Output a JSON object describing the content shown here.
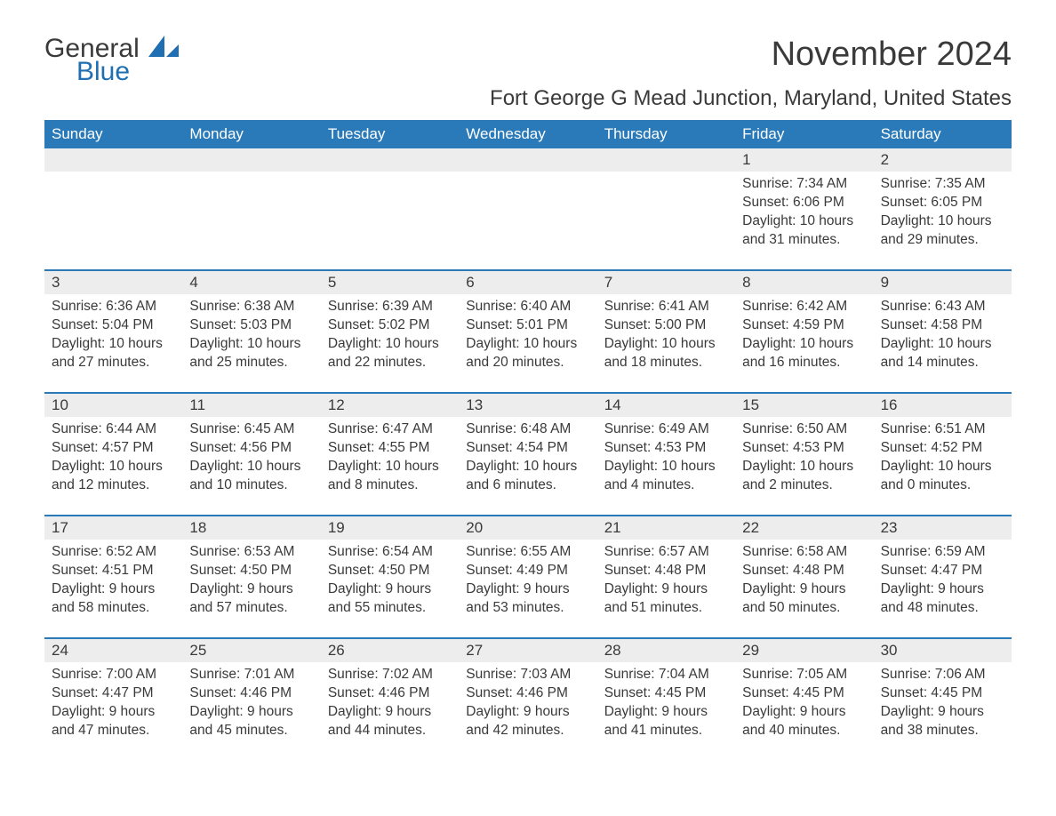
{
  "logo": {
    "text1": "General",
    "text2": "Blue"
  },
  "title": "November 2024",
  "location": "Fort George G Mead Junction, Maryland, United States",
  "colors": {
    "header_bg": "#2a7ab9",
    "header_text": "#ffffff",
    "daynum_bg": "#ededed",
    "border": "#2a7ab9",
    "body_text": "#3a3a3a",
    "logo_blue": "#1f6fb2",
    "page_bg": "#ffffff"
  },
  "font": {
    "family": "Arial",
    "title_size": 38,
    "location_size": 24,
    "weekday_size": 17,
    "body_size": 15.5
  },
  "weekdays": [
    "Sunday",
    "Monday",
    "Tuesday",
    "Wednesday",
    "Thursday",
    "Friday",
    "Saturday"
  ],
  "weeks": [
    {
      "days": [
        {
          "num": "",
          "sunrise": "",
          "sunset": "",
          "daylight": ""
        },
        {
          "num": "",
          "sunrise": "",
          "sunset": "",
          "daylight": ""
        },
        {
          "num": "",
          "sunrise": "",
          "sunset": "",
          "daylight": ""
        },
        {
          "num": "",
          "sunrise": "",
          "sunset": "",
          "daylight": ""
        },
        {
          "num": "",
          "sunrise": "",
          "sunset": "",
          "daylight": ""
        },
        {
          "num": "1",
          "sunrise": "Sunrise: 7:34 AM",
          "sunset": "Sunset: 6:06 PM",
          "daylight": "Daylight: 10 hours and 31 minutes."
        },
        {
          "num": "2",
          "sunrise": "Sunrise: 7:35 AM",
          "sunset": "Sunset: 6:05 PM",
          "daylight": "Daylight: 10 hours and 29 minutes."
        }
      ]
    },
    {
      "days": [
        {
          "num": "3",
          "sunrise": "Sunrise: 6:36 AM",
          "sunset": "Sunset: 5:04 PM",
          "daylight": "Daylight: 10 hours and 27 minutes."
        },
        {
          "num": "4",
          "sunrise": "Sunrise: 6:38 AM",
          "sunset": "Sunset: 5:03 PM",
          "daylight": "Daylight: 10 hours and 25 minutes."
        },
        {
          "num": "5",
          "sunrise": "Sunrise: 6:39 AM",
          "sunset": "Sunset: 5:02 PM",
          "daylight": "Daylight: 10 hours and 22 minutes."
        },
        {
          "num": "6",
          "sunrise": "Sunrise: 6:40 AM",
          "sunset": "Sunset: 5:01 PM",
          "daylight": "Daylight: 10 hours and 20 minutes."
        },
        {
          "num": "7",
          "sunrise": "Sunrise: 6:41 AM",
          "sunset": "Sunset: 5:00 PM",
          "daylight": "Daylight: 10 hours and 18 minutes."
        },
        {
          "num": "8",
          "sunrise": "Sunrise: 6:42 AM",
          "sunset": "Sunset: 4:59 PM",
          "daylight": "Daylight: 10 hours and 16 minutes."
        },
        {
          "num": "9",
          "sunrise": "Sunrise: 6:43 AM",
          "sunset": "Sunset: 4:58 PM",
          "daylight": "Daylight: 10 hours and 14 minutes."
        }
      ]
    },
    {
      "days": [
        {
          "num": "10",
          "sunrise": "Sunrise: 6:44 AM",
          "sunset": "Sunset: 4:57 PM",
          "daylight": "Daylight: 10 hours and 12 minutes."
        },
        {
          "num": "11",
          "sunrise": "Sunrise: 6:45 AM",
          "sunset": "Sunset: 4:56 PM",
          "daylight": "Daylight: 10 hours and 10 minutes."
        },
        {
          "num": "12",
          "sunrise": "Sunrise: 6:47 AM",
          "sunset": "Sunset: 4:55 PM",
          "daylight": "Daylight: 10 hours and 8 minutes."
        },
        {
          "num": "13",
          "sunrise": "Sunrise: 6:48 AM",
          "sunset": "Sunset: 4:54 PM",
          "daylight": "Daylight: 10 hours and 6 minutes."
        },
        {
          "num": "14",
          "sunrise": "Sunrise: 6:49 AM",
          "sunset": "Sunset: 4:53 PM",
          "daylight": "Daylight: 10 hours and 4 minutes."
        },
        {
          "num": "15",
          "sunrise": "Sunrise: 6:50 AM",
          "sunset": "Sunset: 4:53 PM",
          "daylight": "Daylight: 10 hours and 2 minutes."
        },
        {
          "num": "16",
          "sunrise": "Sunrise: 6:51 AM",
          "sunset": "Sunset: 4:52 PM",
          "daylight": "Daylight: 10 hours and 0 minutes."
        }
      ]
    },
    {
      "days": [
        {
          "num": "17",
          "sunrise": "Sunrise: 6:52 AM",
          "sunset": "Sunset: 4:51 PM",
          "daylight": "Daylight: 9 hours and 58 minutes."
        },
        {
          "num": "18",
          "sunrise": "Sunrise: 6:53 AM",
          "sunset": "Sunset: 4:50 PM",
          "daylight": "Daylight: 9 hours and 57 minutes."
        },
        {
          "num": "19",
          "sunrise": "Sunrise: 6:54 AM",
          "sunset": "Sunset: 4:50 PM",
          "daylight": "Daylight: 9 hours and 55 minutes."
        },
        {
          "num": "20",
          "sunrise": "Sunrise: 6:55 AM",
          "sunset": "Sunset: 4:49 PM",
          "daylight": "Daylight: 9 hours and 53 minutes."
        },
        {
          "num": "21",
          "sunrise": "Sunrise: 6:57 AM",
          "sunset": "Sunset: 4:48 PM",
          "daylight": "Daylight: 9 hours and 51 minutes."
        },
        {
          "num": "22",
          "sunrise": "Sunrise: 6:58 AM",
          "sunset": "Sunset: 4:48 PM",
          "daylight": "Daylight: 9 hours and 50 minutes."
        },
        {
          "num": "23",
          "sunrise": "Sunrise: 6:59 AM",
          "sunset": "Sunset: 4:47 PM",
          "daylight": "Daylight: 9 hours and 48 minutes."
        }
      ]
    },
    {
      "days": [
        {
          "num": "24",
          "sunrise": "Sunrise: 7:00 AM",
          "sunset": "Sunset: 4:47 PM",
          "daylight": "Daylight: 9 hours and 47 minutes."
        },
        {
          "num": "25",
          "sunrise": "Sunrise: 7:01 AM",
          "sunset": "Sunset: 4:46 PM",
          "daylight": "Daylight: 9 hours and 45 minutes."
        },
        {
          "num": "26",
          "sunrise": "Sunrise: 7:02 AM",
          "sunset": "Sunset: 4:46 PM",
          "daylight": "Daylight: 9 hours and 44 minutes."
        },
        {
          "num": "27",
          "sunrise": "Sunrise: 7:03 AM",
          "sunset": "Sunset: 4:46 PM",
          "daylight": "Daylight: 9 hours and 42 minutes."
        },
        {
          "num": "28",
          "sunrise": "Sunrise: 7:04 AM",
          "sunset": "Sunset: 4:45 PM",
          "daylight": "Daylight: 9 hours and 41 minutes."
        },
        {
          "num": "29",
          "sunrise": "Sunrise: 7:05 AM",
          "sunset": "Sunset: 4:45 PM",
          "daylight": "Daylight: 9 hours and 40 minutes."
        },
        {
          "num": "30",
          "sunrise": "Sunrise: 7:06 AM",
          "sunset": "Sunset: 4:45 PM",
          "daylight": "Daylight: 9 hours and 38 minutes."
        }
      ]
    }
  ]
}
